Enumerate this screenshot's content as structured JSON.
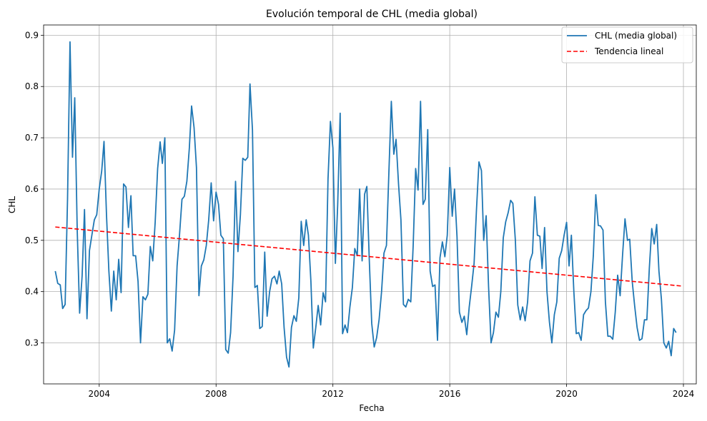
{
  "chart_data": {
    "type": "line",
    "title": "Evolución temporal de CHL (media global)",
    "xlabel": "Fecha",
    "ylabel": "CHL",
    "x_ticks": [
      "2004",
      "2008",
      "2012",
      "2016",
      "2020",
      "2024"
    ],
    "y_ticks": [
      "0.3",
      "0.4",
      "0.5",
      "0.6",
      "0.7",
      "0.8",
      "0.9"
    ],
    "xlim": [
      "2002-02-05",
      "2024-06-10"
    ],
    "ylim": [
      0.22,
      0.92
    ],
    "grid": true,
    "legend_position": "top-right",
    "colors": {
      "chl": "#1f77b4",
      "trend": "#ff0000"
    },
    "series": [
      {
        "name": "CHL (media global)",
        "x_start": "2002-07",
        "frequency": "monthly",
        "values": [
          0.44,
          0.416,
          0.413,
          0.367,
          0.375,
          0.58,
          0.887,
          0.662,
          0.778,
          0.52,
          0.358,
          0.43,
          0.56,
          0.347,
          0.48,
          0.51,
          0.54,
          0.55,
          0.6,
          0.635,
          0.693,
          0.55,
          0.44,
          0.362,
          0.44,
          0.384,
          0.463,
          0.398,
          0.61,
          0.604,
          0.525,
          0.587,
          0.47,
          0.47,
          0.42,
          0.3,
          0.39,
          0.384,
          0.395,
          0.488,
          0.46,
          0.535,
          0.64,
          0.692,
          0.65,
          0.7,
          0.3,
          0.308,
          0.284,
          0.325,
          0.45,
          0.51,
          0.58,
          0.586,
          0.615,
          0.68,
          0.762,
          0.72,
          0.642,
          0.392,
          0.45,
          0.462,
          0.49,
          0.54,
          0.612,
          0.538,
          0.594,
          0.57,
          0.51,
          0.503,
          0.287,
          0.28,
          0.32,
          0.43,
          0.615,
          0.478,
          0.55,
          0.66,
          0.656,
          0.662,
          0.805,
          0.715,
          0.408,
          0.412,
          0.328,
          0.332,
          0.477,
          0.352,
          0.4,
          0.425,
          0.43,
          0.415,
          0.44,
          0.415,
          0.33,
          0.272,
          0.253,
          0.33,
          0.353,
          0.342,
          0.388,
          0.537,
          0.49,
          0.54,
          0.51,
          0.42,
          0.29,
          0.33,
          0.373,
          0.335,
          0.398,
          0.38,
          0.62,
          0.732,
          0.68,
          0.455,
          0.57,
          0.748,
          0.318,
          0.335,
          0.32,
          0.37,
          0.408,
          0.484,
          0.47,
          0.6,
          0.46,
          0.59,
          0.605,
          0.46,
          0.338,
          0.292,
          0.31,
          0.345,
          0.4,
          0.475,
          0.49,
          0.63,
          0.771,
          0.668,
          0.697,
          0.61,
          0.54,
          0.375,
          0.37,
          0.385,
          0.38,
          0.49,
          0.64,
          0.598,
          0.771,
          0.57,
          0.58,
          0.716,
          0.44,
          0.41,
          0.413,
          0.305,
          0.466,
          0.497,
          0.468,
          0.51,
          0.642,
          0.547,
          0.6,
          0.507,
          0.36,
          0.34,
          0.352,
          0.316,
          0.37,
          0.41,
          0.455,
          0.56,
          0.653,
          0.636,
          0.5,
          0.548,
          0.41,
          0.3,
          0.32,
          0.36,
          0.35,
          0.4,
          0.505,
          0.536,
          0.554,
          0.578,
          0.572,
          0.5,
          0.374,
          0.345,
          0.37,
          0.343,
          0.38,
          0.46,
          0.475,
          0.585,
          0.51,
          0.508,
          0.445,
          0.525,
          0.4,
          0.34,
          0.3,
          0.355,
          0.38,
          0.465,
          0.48,
          0.51,
          0.535,
          0.45,
          0.51,
          0.4,
          0.318,
          0.32,
          0.305,
          0.355,
          0.363,
          0.368,
          0.4,
          0.47,
          0.589,
          0.529,
          0.528,
          0.52,
          0.38,
          0.313,
          0.313,
          0.307,
          0.36,
          0.432,
          0.392,
          0.47,
          0.542,
          0.5,
          0.502,
          0.42,
          0.373,
          0.33,
          0.305,
          0.308,
          0.345,
          0.345,
          0.446,
          0.523,
          0.493,
          0.531,
          0.44,
          0.385,
          0.3,
          0.29,
          0.303,
          0.275,
          0.328,
          0.32
        ]
      },
      {
        "name": "Tendencia lineal",
        "x": [
          "2002-07",
          "2023-12"
        ],
        "values": [
          0.526,
          0.411
        ]
      }
    ]
  }
}
